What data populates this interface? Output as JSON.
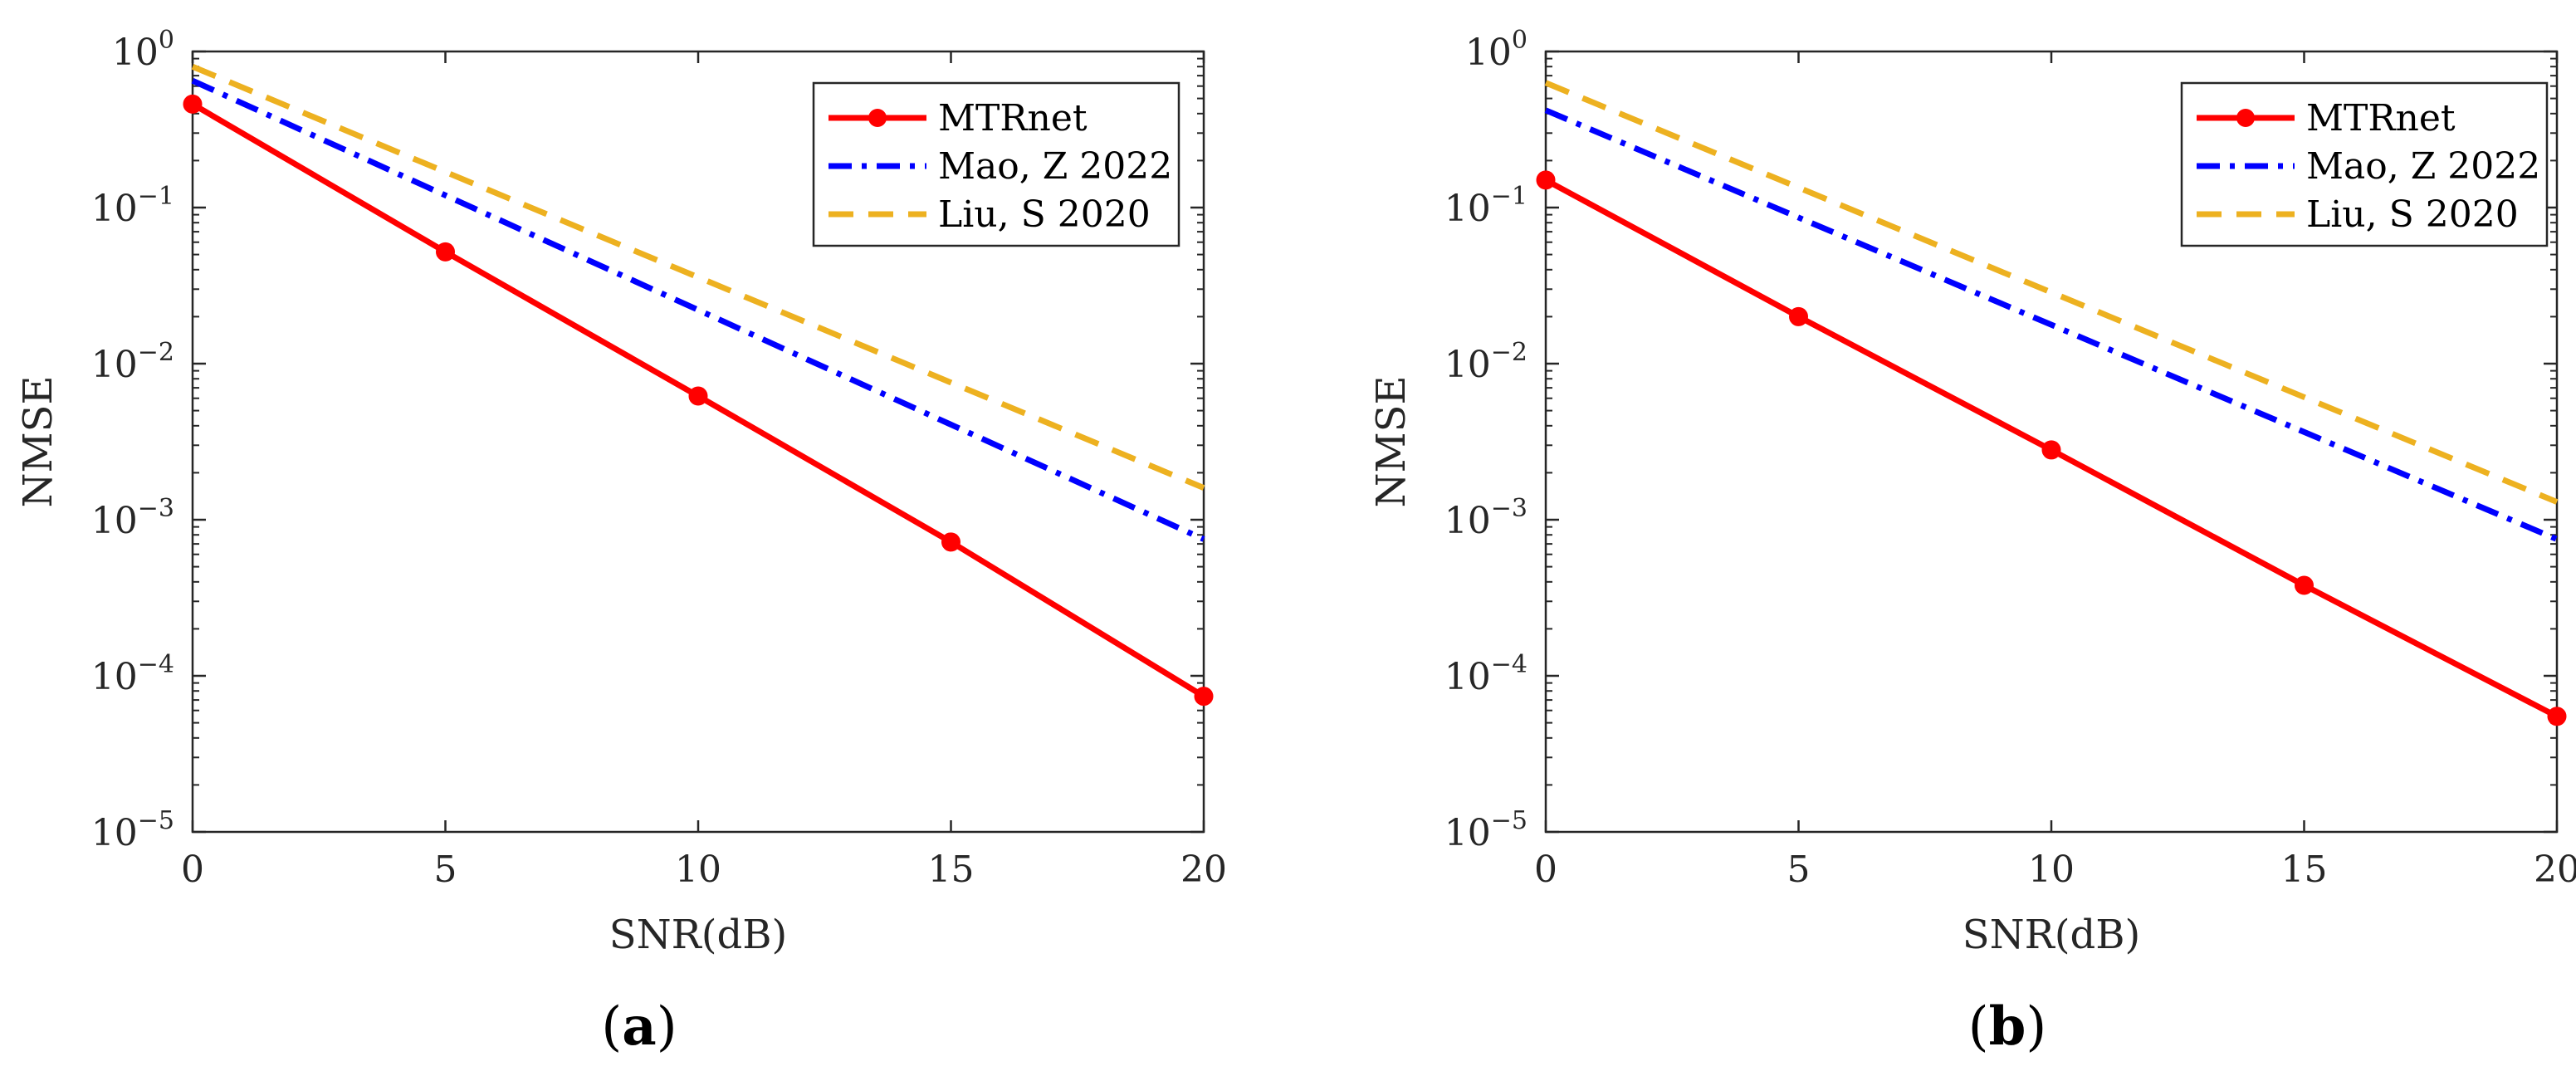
{
  "chart_data": [
    {
      "type": "line",
      "caption_label": "a",
      "xlabel": "SNR(dB)",
      "ylabel": "NMSE",
      "xlim": [
        0,
        20
      ],
      "ylim": [
        1e-05,
        1
      ],
      "yscale": "log",
      "x_ticks": [
        "0",
        "5",
        "10",
        "15",
        "20"
      ],
      "x_tick_values": [
        0,
        5,
        10,
        15,
        20
      ],
      "y_tick_exponents": [
        "0",
        "-1",
        "-2",
        "-3",
        "-4",
        "-5"
      ],
      "grid": false,
      "legend_position": "top-right",
      "series": [
        {
          "name": "MTRnet",
          "color": "#ff0000",
          "style": "solid-marker",
          "x": [
            0,
            5,
            10,
            15,
            20
          ],
          "values": [
            0.46,
            0.052,
            0.0062,
            0.00072,
            7.4e-05
          ]
        },
        {
          "name": "Mao, Z 2022",
          "color": "#0000ff",
          "style": "dashdot",
          "x": [
            0,
            20
          ],
          "values": [
            0.65,
            0.00075
          ]
        },
        {
          "name": "Liu, S 2020",
          "color": "#edb120",
          "style": "dashed",
          "x": [
            0,
            20
          ],
          "values": [
            0.8,
            0.0016
          ]
        }
      ]
    },
    {
      "type": "line",
      "caption_label": "b",
      "xlabel": "SNR(dB)",
      "ylabel": "NMSE",
      "xlim": [
        0,
        20
      ],
      "ylim": [
        1e-05,
        1
      ],
      "yscale": "log",
      "x_ticks": [
        "0",
        "5",
        "10",
        "15",
        "20"
      ],
      "x_tick_values": [
        0,
        5,
        10,
        15,
        20
      ],
      "y_tick_exponents": [
        "0",
        "-1",
        "-2",
        "-3",
        "-4",
        "-5"
      ],
      "grid": false,
      "legend_position": "top-right",
      "series": [
        {
          "name": "MTRnet",
          "color": "#ff0000",
          "style": "solid-marker",
          "x": [
            0,
            5,
            10,
            15,
            20
          ],
          "values": [
            0.15,
            0.02,
            0.0028,
            0.00038,
            5.5e-05
          ]
        },
        {
          "name": "Mao, Z 2022",
          "color": "#0000ff",
          "style": "dashdot",
          "x": [
            0,
            20
          ],
          "values": [
            0.42,
            0.00075
          ]
        },
        {
          "name": "Liu, S 2020",
          "color": "#edb120",
          "style": "dashed",
          "x": [
            0,
            20
          ],
          "values": [
            0.63,
            0.0013
          ]
        }
      ]
    }
  ]
}
